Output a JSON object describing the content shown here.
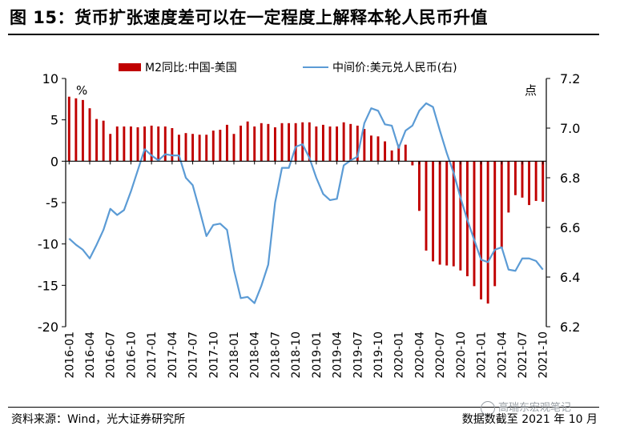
{
  "figure": {
    "title": "图 15：货币扩张速度差可以在一定程度上解释本轮人民币升值",
    "source": "资料来源：Wind，光大证券研究所",
    "as_of": "数据数截至 2021 年 10 月",
    "watermark": "高瑞东宏观笔记",
    "watermark_icon": "wechat-icon"
  },
  "colors": {
    "bar": "#c00000",
    "line": "#5b9bd5",
    "axis": "#000000"
  },
  "chart_data": {
    "type": "bar+line",
    "legend_placement": "top",
    "grid": false,
    "categories": [
      "2016-01",
      "2016-02",
      "2016-03",
      "2016-04",
      "2016-05",
      "2016-06",
      "2016-07",
      "2016-08",
      "2016-09",
      "2016-10",
      "2016-11",
      "2016-12",
      "2017-01",
      "2017-02",
      "2017-03",
      "2017-04",
      "2017-05",
      "2017-06",
      "2017-07",
      "2017-08",
      "2017-09",
      "2017-10",
      "2017-11",
      "2017-12",
      "2018-01",
      "2018-02",
      "2018-03",
      "2018-04",
      "2018-05",
      "2018-06",
      "2018-07",
      "2018-08",
      "2018-09",
      "2018-10",
      "2018-11",
      "2018-12",
      "2019-01",
      "2019-02",
      "2019-03",
      "2019-04",
      "2019-05",
      "2019-06",
      "2019-07",
      "2019-08",
      "2019-09",
      "2019-10",
      "2019-11",
      "2019-12",
      "2020-01",
      "2020-02",
      "2020-03",
      "2020-04",
      "2020-05",
      "2020-06",
      "2020-07",
      "2020-08",
      "2020-09",
      "2020-10",
      "2020-11",
      "2020-12",
      "2021-01",
      "2021-02",
      "2021-03",
      "2021-04",
      "2021-05",
      "2021-06",
      "2021-07",
      "2021-08",
      "2021-09",
      "2021-10"
    ],
    "x_tick_labels": [
      "2016-01",
      "2016-04",
      "2016-07",
      "2016-10",
      "2017-01",
      "2017-04",
      "2017-07",
      "2017-10",
      "2018-01",
      "2018-04",
      "2018-07",
      "2018-10",
      "2019-01",
      "2019-04",
      "2019-07",
      "2019-10",
      "2020-01",
      "2020-04",
      "2020-07",
      "2020-10",
      "2021-01",
      "2021-04",
      "2021-07",
      "2021-10"
    ],
    "left_axis": {
      "unit_label": "%",
      "ylim": [
        -20,
        10
      ],
      "ticks": [
        "10",
        "5",
        "0",
        "-5",
        "-10",
        "-15",
        "-20"
      ]
    },
    "right_axis": {
      "unit_label": "点",
      "ylim": [
        6.2,
        7.2
      ],
      "ticks": [
        "7.2",
        "7.0",
        "6.8",
        "6.6",
        "6.4",
        "6.2"
      ]
    },
    "series": [
      {
        "name": "M2同比:中国-美国",
        "type": "bar",
        "axis": "left",
        "values": [
          7.8,
          7.6,
          7.4,
          6.4,
          5.1,
          4.9,
          3.3,
          4.2,
          4.2,
          4.2,
          4.1,
          4.2,
          4.3,
          4.2,
          4.2,
          4.0,
          3.2,
          3.4,
          3.3,
          3.2,
          3.2,
          3.7,
          3.8,
          4.4,
          3.3,
          4.3,
          4.8,
          4.2,
          4.6,
          4.5,
          4.1,
          4.6,
          4.6,
          4.6,
          4.7,
          4.7,
          4.2,
          4.4,
          4.2,
          4.2,
          4.7,
          4.5,
          4.3,
          3.9,
          3.1,
          3.0,
          2.4,
          1.3,
          2.0,
          2.0,
          -0.5,
          -6.0,
          -10.8,
          -12.1,
          -12.5,
          -12.6,
          -12.7,
          -13.2,
          -13.9,
          -15.1,
          -16.7,
          -17.2,
          -15.1,
          -10.5,
          -6.2,
          -4.1,
          -4.4,
          -5.3,
          -4.8,
          -4.9
        ]
      },
      {
        "name": "中间价:美元兑人民币(右)",
        "type": "line",
        "axis": "right",
        "values": [
          6.555,
          6.53,
          6.51,
          6.475,
          6.53,
          6.59,
          6.675,
          6.65,
          6.67,
          6.745,
          6.83,
          6.915,
          6.89,
          6.87,
          6.895,
          6.89,
          6.89,
          6.8,
          6.77,
          6.67,
          6.565,
          6.61,
          6.615,
          6.59,
          6.43,
          6.315,
          6.32,
          6.295,
          6.365,
          6.45,
          6.7,
          6.84,
          6.84,
          6.925,
          6.935,
          6.88,
          6.8,
          6.735,
          6.71,
          6.715,
          6.85,
          6.87,
          6.885,
          7.02,
          7.08,
          7.07,
          7.015,
          7.01,
          6.92,
          6.99,
          7.01,
          7.07,
          7.1,
          7.085,
          6.99,
          6.9,
          6.82,
          6.72,
          6.63,
          6.55,
          6.47,
          6.46,
          6.51,
          6.52,
          6.43,
          6.425,
          6.475,
          6.475,
          6.465,
          6.43
        ]
      }
    ]
  }
}
